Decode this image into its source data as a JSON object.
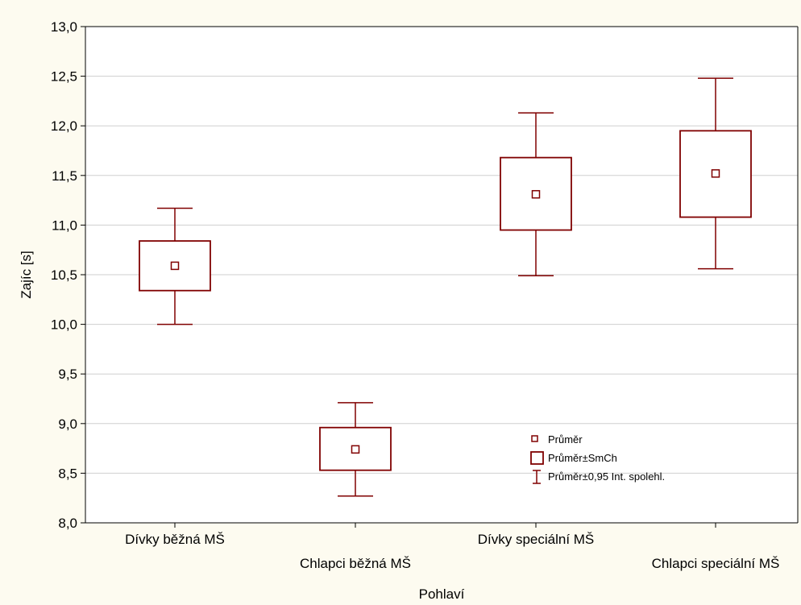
{
  "chart_data": {
    "type": "box",
    "xlabel": "Pohlaví",
    "ylabel": "Zajíc [s]",
    "ylim": [
      8.0,
      13.0
    ],
    "ytick_step": 0.5,
    "grid": true,
    "color": "#800000",
    "categories": [
      "Dívky běžná MŠ",
      "Chlapci běžná MŠ",
      "Dívky speciální MŠ",
      "Chlapci speciální MŠ"
    ],
    "mean": [
      10.59,
      8.74,
      11.31,
      11.52
    ],
    "se_low": [
      10.34,
      8.53,
      10.95,
      11.08
    ],
    "se_high": [
      10.84,
      8.96,
      11.68,
      11.95
    ],
    "ci_low": [
      10.0,
      8.27,
      10.49,
      10.56
    ],
    "ci_high": [
      11.17,
      9.21,
      12.13,
      12.48
    ],
    "legend": {
      "position": "lower-right",
      "items": [
        "Průměr",
        "Průměr±SmCh",
        "Průměr±0,95 Int. spolehl."
      ]
    }
  }
}
